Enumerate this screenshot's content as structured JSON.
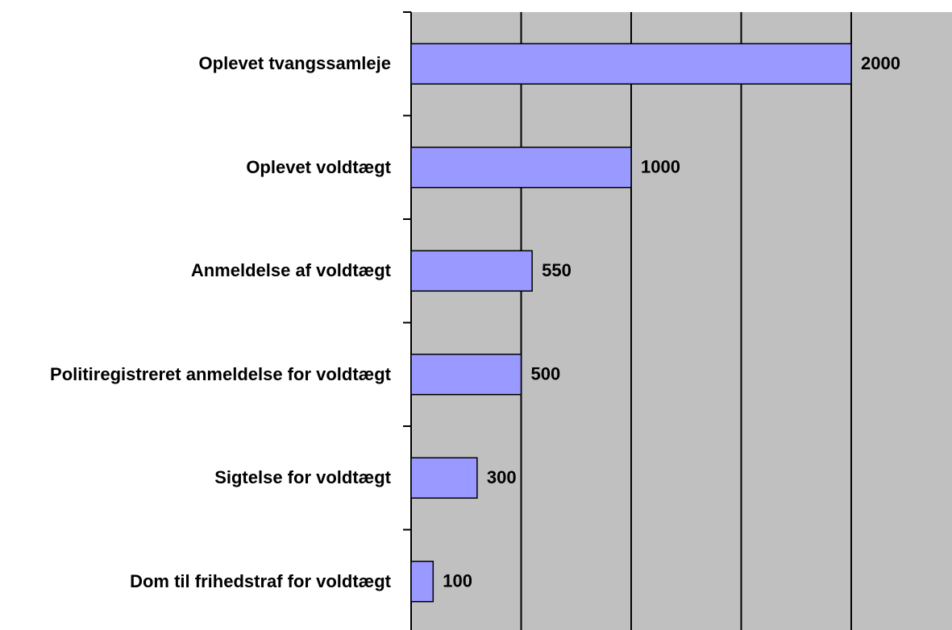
{
  "chart_data": {
    "type": "bar",
    "orientation": "horizontal",
    "categories": [
      "Oplevet tvangssamleje",
      "Oplevet voldtægt",
      "Anmeldelse af voldtægt",
      "Politiregistreret anmeldelse for voldtægt",
      "Sigtelse for voldtægt",
      "Dom til frihedstraf for voldtægt"
    ],
    "values": [
      2000,
      1000,
      550,
      500,
      300,
      100
    ],
    "color": "#9999ff",
    "xlim": [
      0,
      2500
    ],
    "xticks": [
      0,
      500,
      1000,
      1500,
      2000,
      2500
    ],
    "grid": true
  }
}
